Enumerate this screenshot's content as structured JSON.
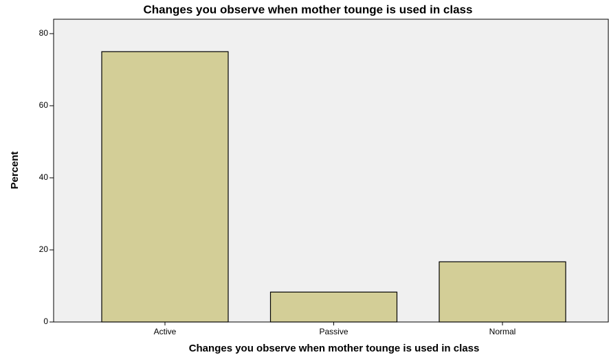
{
  "chart_data": {
    "type": "bar",
    "title": "Changes you observe when mother tounge is used in class",
    "x_label": "Changes you observe when mother tounge is used in class",
    "y_label": "Percent",
    "categories": [
      "Active",
      "Passive",
      "Normal"
    ],
    "values": [
      75,
      8.3,
      16.7
    ],
    "color": "#d3ce97",
    "ylim": [
      0,
      84
    ],
    "yticks": [
      0,
      20,
      40,
      60,
      80
    ],
    "grid": false
  }
}
